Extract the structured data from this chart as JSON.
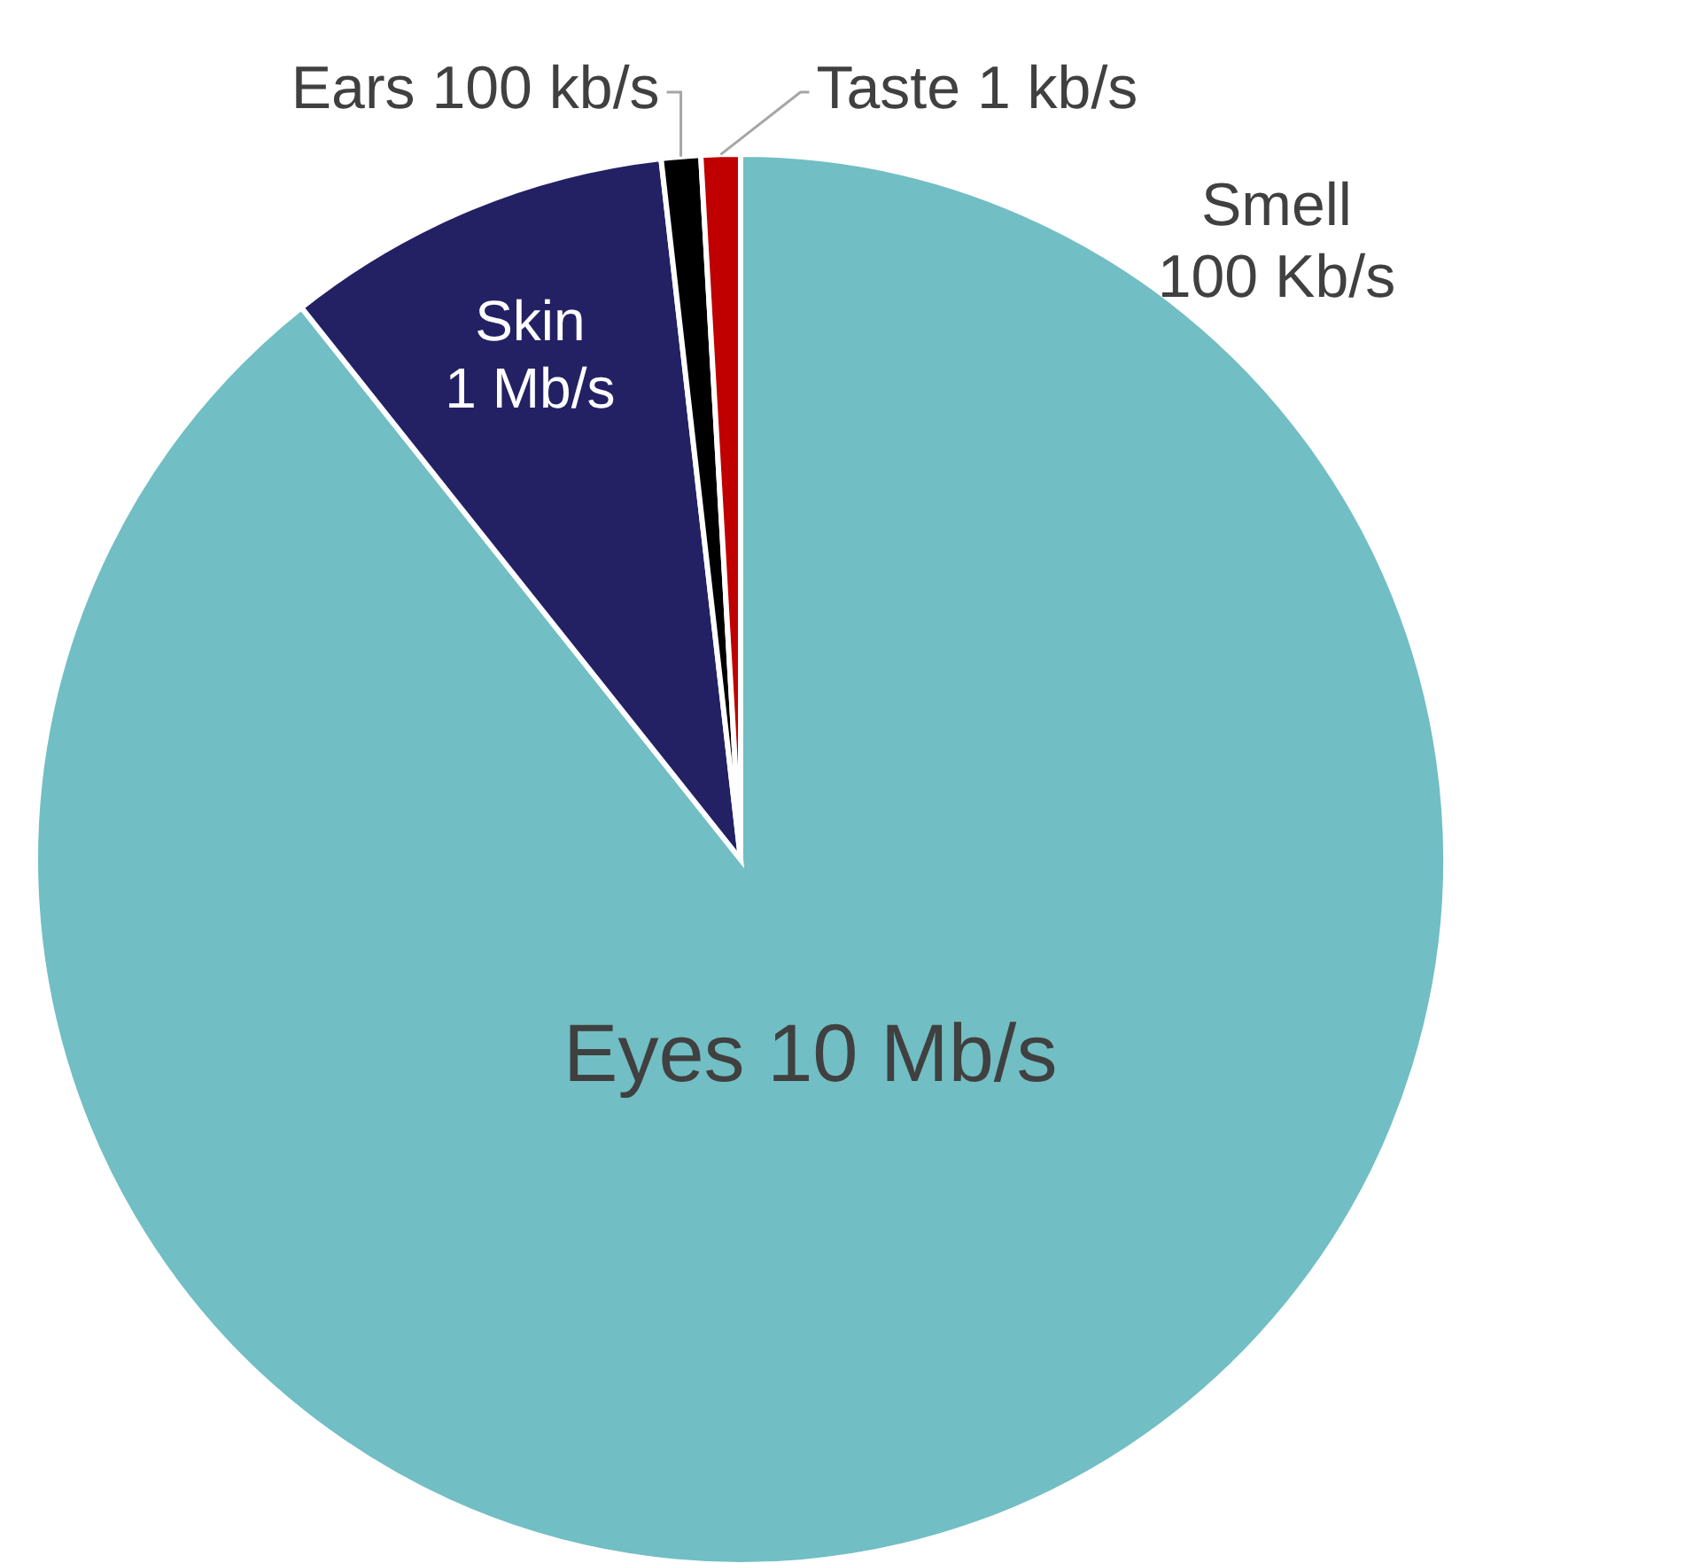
{
  "chart_data": {
    "type": "pie",
    "categories": [
      "Eyes 10 Mb/s",
      "Skin 1 Mb/s",
      "Ears 100 kb/s",
      "Taste 1 kb/s",
      "Smell 100 Kb/s"
    ],
    "values": [
      89.3,
      8.9,
      0.9,
      0.9,
      0
    ],
    "colors": [
      "#71bec4",
      "#232164",
      "#000000",
      "#c00000",
      "#a5a5a5"
    ]
  }
}
